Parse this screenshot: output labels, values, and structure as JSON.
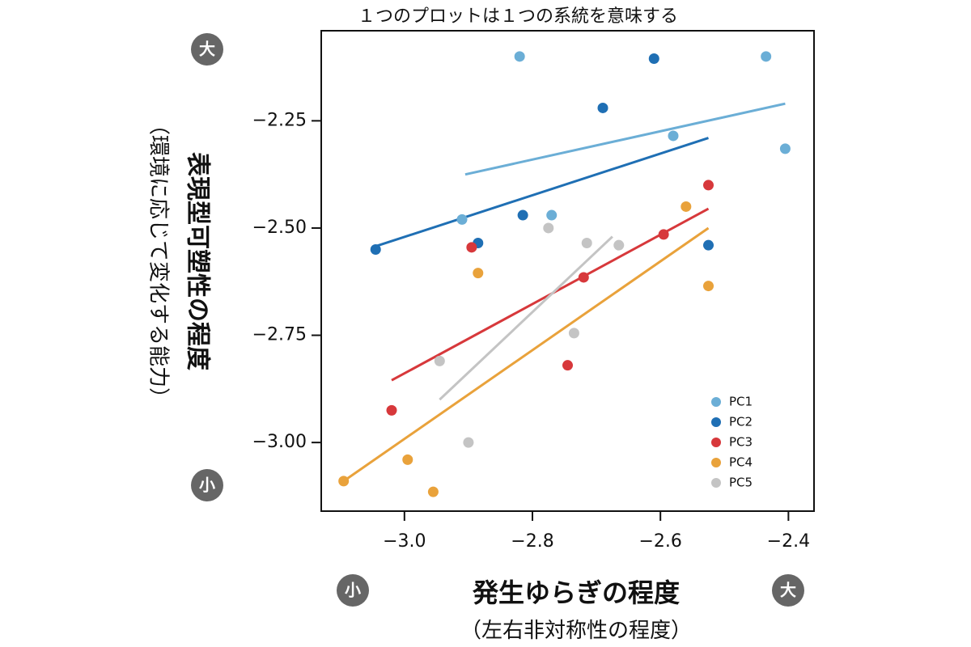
{
  "chart_data": {
    "type": "scatter",
    "note": "１つのプロットは１つの系統を意味する",
    "xlabel": "発生ゆらぎの程度",
    "xlabel_sub": "（左右非対称性の程度）",
    "ylabel": "表現型可塑性の程度",
    "ylabel_sub": "（環境に応じて変化する能力）",
    "x_low_badge": "小",
    "x_high_badge": "大",
    "y_low_badge": "小",
    "y_high_badge": "大",
    "xlim": [
      -3.13,
      -2.36
    ],
    "ylim": [
      -3.16,
      -2.04
    ],
    "xticks": [
      -3.0,
      -2.8,
      -2.6,
      -2.4
    ],
    "xtick_labels": [
      "−3.0",
      "−2.8",
      "−2.6",
      "−2.4"
    ],
    "yticks": [
      -2.25,
      -2.5,
      -2.75,
      -3.0
    ],
    "ytick_labels": [
      "−2.25",
      "−2.50",
      "−2.75",
      "−3.00"
    ],
    "grid": false,
    "legend_position": "bottom-right",
    "series": [
      {
        "name": "PC1",
        "color": "#6BAED6",
        "points": [
          [
            -2.82,
            -2.1
          ],
          [
            -2.435,
            -2.1
          ],
          [
            -2.58,
            -2.285
          ],
          [
            -2.405,
            -2.315
          ],
          [
            -2.91,
            -2.48
          ],
          [
            -2.77,
            -2.47
          ]
        ],
        "fit": [
          [
            -2.905,
            -2.375
          ],
          [
            -2.405,
            -2.21
          ]
        ]
      },
      {
        "name": "PC2",
        "color": "#1F6FB4",
        "points": [
          [
            -2.61,
            -2.105
          ],
          [
            -2.69,
            -2.22
          ],
          [
            -3.045,
            -2.55
          ],
          [
            -2.815,
            -2.47
          ],
          [
            -2.885,
            -2.535
          ],
          [
            -2.525,
            -2.54
          ]
        ],
        "fit": [
          [
            -3.05,
            -2.545
          ],
          [
            -2.525,
            -2.29
          ]
        ]
      },
      {
        "name": "PC3",
        "color": "#D7383B",
        "points": [
          [
            -2.525,
            -2.4
          ],
          [
            -2.895,
            -2.545
          ],
          [
            -2.72,
            -2.615
          ],
          [
            -2.595,
            -2.515
          ],
          [
            -2.745,
            -2.82
          ],
          [
            -3.02,
            -2.925
          ]
        ],
        "fit": [
          [
            -3.02,
            -2.855
          ],
          [
            -2.525,
            -2.455
          ]
        ]
      },
      {
        "name": "PC4",
        "color": "#E9A23B",
        "points": [
          [
            -2.56,
            -2.45
          ],
          [
            -2.885,
            -2.605
          ],
          [
            -2.525,
            -2.635
          ],
          [
            -2.995,
            -3.04
          ],
          [
            -3.095,
            -3.09
          ],
          [
            -2.955,
            -3.115
          ]
        ],
        "fit": [
          [
            -3.095,
            -3.09
          ],
          [
            -2.525,
            -2.5
          ]
        ]
      },
      {
        "name": "PC5",
        "color": "#C4C4C4",
        "points": [
          [
            -2.775,
            -2.5
          ],
          [
            -2.715,
            -2.535
          ],
          [
            -2.665,
            -2.54
          ],
          [
            -2.735,
            -2.745
          ],
          [
            -2.945,
            -2.81
          ],
          [
            -2.9,
            -3.0
          ]
        ],
        "fit": [
          [
            -2.945,
            -2.9
          ],
          [
            -2.675,
            -2.52
          ]
        ]
      }
    ]
  }
}
